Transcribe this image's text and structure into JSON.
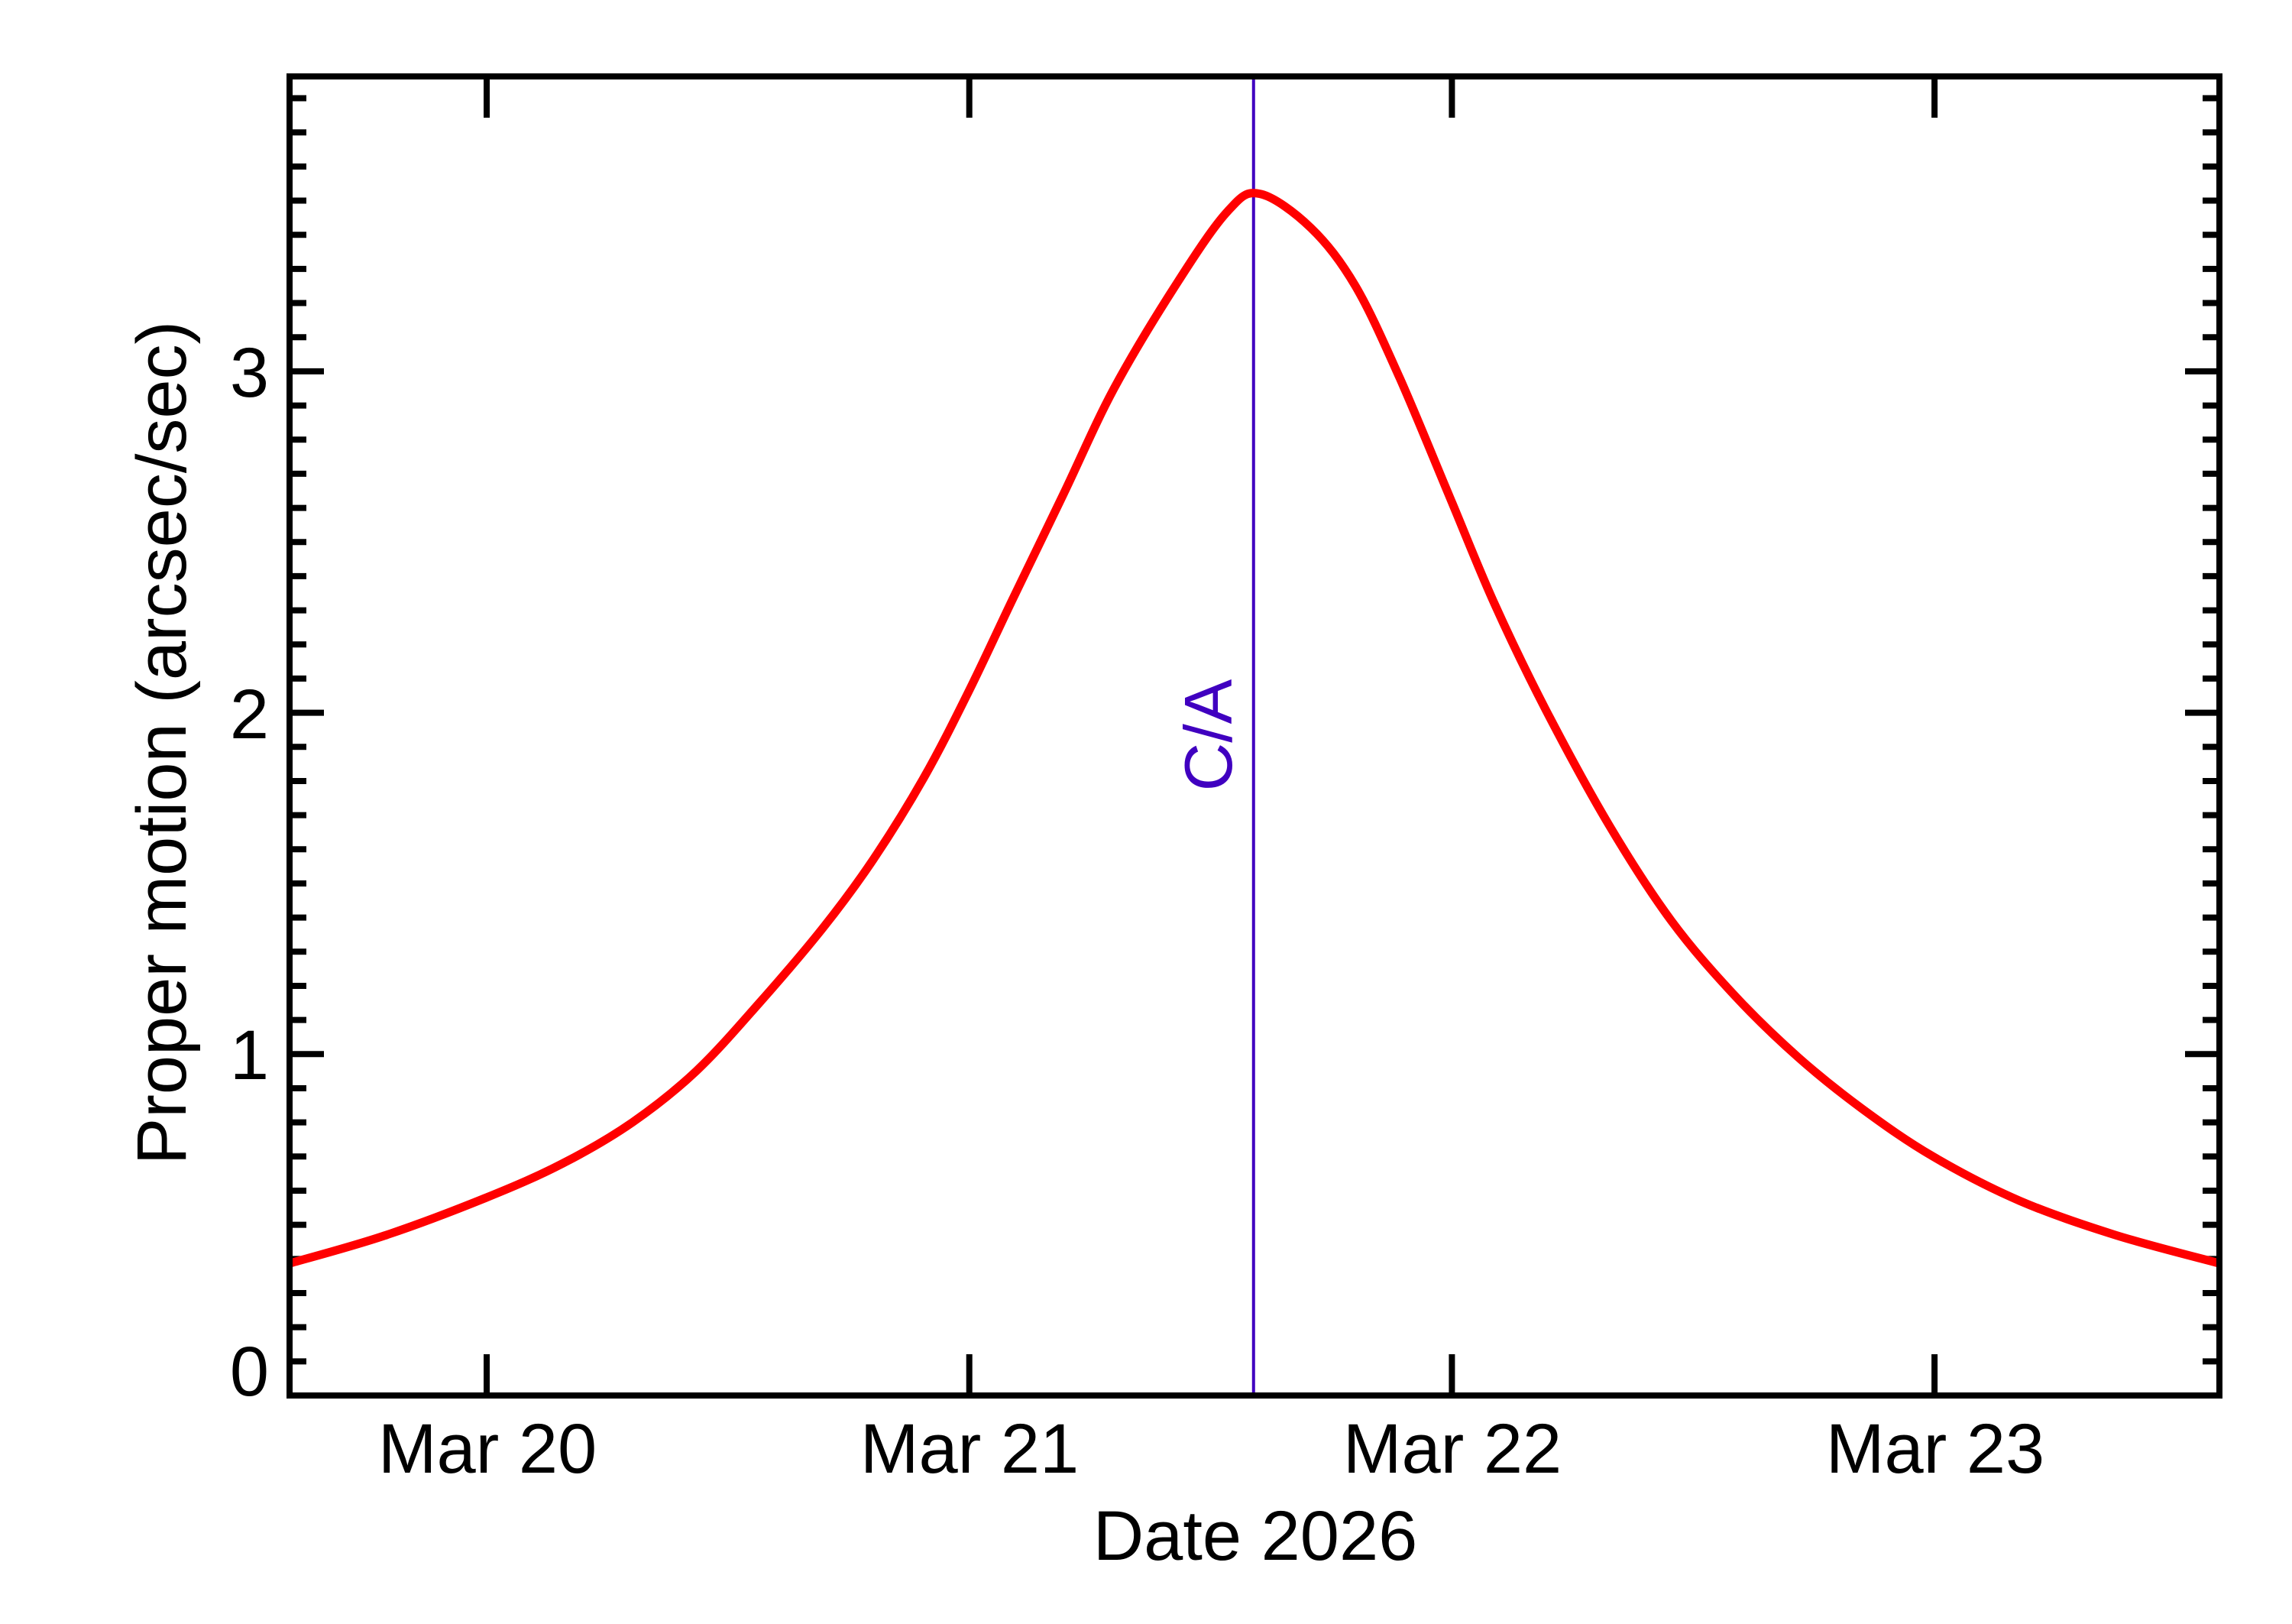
{
  "chart_data": {
    "type": "line",
    "title": "",
    "xlabel": "Date 2026",
    "ylabel": "Proper motion (arcsec/sec)",
    "x_unit": "day of March 2026",
    "xlim": [
      19.592,
      23.59
    ],
    "ylim": [
      0,
      3.86
    ],
    "grid": false,
    "legend": null,
    "x_ticks": [
      {
        "value": 20,
        "label": "Mar 20"
      },
      {
        "value": 21,
        "label": "Mar 21"
      },
      {
        "value": 22,
        "label": "Mar 22"
      },
      {
        "value": 23,
        "label": "Mar 23"
      }
    ],
    "y_ticks": [
      {
        "value": 0,
        "label": "0"
      },
      {
        "value": 1,
        "label": "1"
      },
      {
        "value": 2,
        "label": "2"
      },
      {
        "value": 3,
        "label": "3"
      }
    ],
    "y_minor_step": 0.1,
    "annotations": [
      {
        "type": "vline",
        "x": 21.589,
        "label": "C/A",
        "color": "#4000C0"
      }
    ],
    "series": [
      {
        "name": "Proper motion",
        "color": "#FF0000",
        "x": [
          19.592,
          19.788,
          20.0,
          20.158,
          20.302,
          20.434,
          20.565,
          20.697,
          20.801,
          20.906,
          20.998,
          21.089,
          21.195,
          21.3,
          21.431,
          21.536,
          21.602,
          21.708,
          21.8,
          21.892,
          21.996,
          22.088,
          22.194,
          22.326,
          22.455,
          22.587,
          22.718,
          22.85,
          22.997,
          23.177,
          23.375,
          23.59
        ],
        "values": [
          0.387,
          0.468,
          0.58,
          0.68,
          0.8,
          0.95,
          1.15,
          1.37,
          1.57,
          1.81,
          2.06,
          2.33,
          2.64,
          2.95,
          3.26,
          3.47,
          3.52,
          3.42,
          3.25,
          2.98,
          2.63,
          2.32,
          2.01,
          1.67,
          1.39,
          1.17,
          0.99,
          0.84,
          0.7,
          0.57,
          0.47,
          0.387
        ]
      }
    ]
  },
  "labels": {
    "xlabel": "Date 2026",
    "ylabel": "Proper motion (arcsec/sec)",
    "ca": "C/A",
    "xticks": [
      "Mar 20",
      "Mar 21",
      "Mar 22",
      "Mar 23"
    ],
    "yticks": [
      "0",
      "1",
      "2",
      "3"
    ]
  },
  "colors": {
    "curve": "#FF0000",
    "ca_line": "#4000C0",
    "axes": "#000000"
  }
}
